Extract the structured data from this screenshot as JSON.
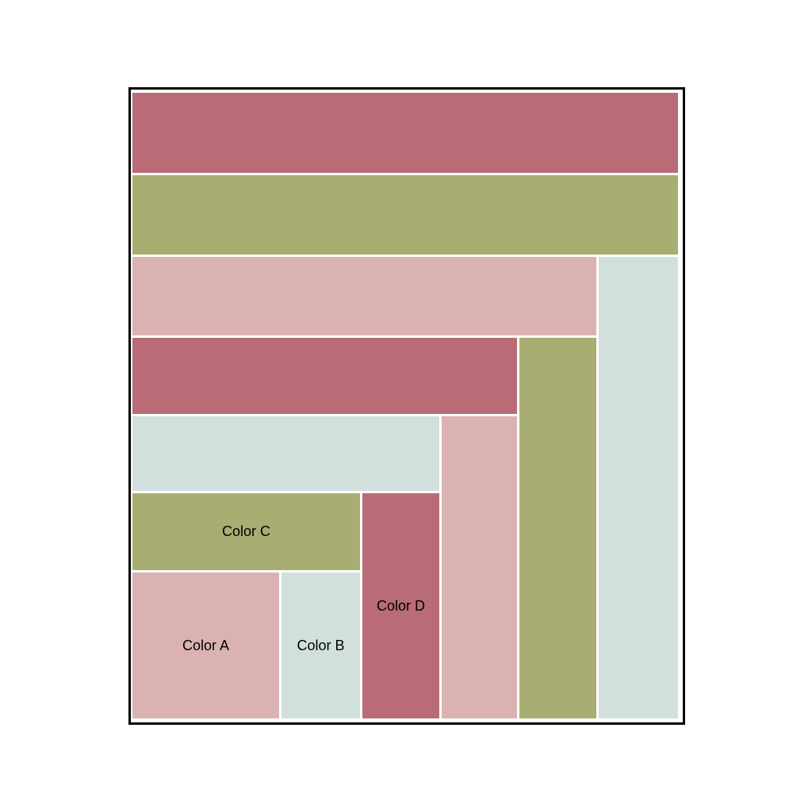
{
  "colors": {
    "A": "#dbb2b2",
    "B": "#d2e0dd",
    "C": "#a8ae71",
    "D": "#b96c75"
  },
  "legend": {
    "color_a": "Color A",
    "color_b": "Color B",
    "color_c": "Color C",
    "color_d": "Color D"
  },
  "patches": [
    {
      "id": "center-a",
      "color": "A",
      "label_key": "color_a"
    },
    {
      "id": "round1-b",
      "color": "B",
      "label_key": "color_b"
    },
    {
      "id": "round1-c",
      "color": "C",
      "label_key": "color_c"
    },
    {
      "id": "round1-d",
      "color": "D",
      "label_key": "color_d"
    },
    {
      "id": "round2-b",
      "color": "B"
    },
    {
      "id": "round2-a",
      "color": "A"
    },
    {
      "id": "round2-d",
      "color": "D"
    },
    {
      "id": "round3-c",
      "color": "C"
    },
    {
      "id": "round3-a",
      "color": "A"
    },
    {
      "id": "round3-b",
      "color": "B"
    },
    {
      "id": "round4-c",
      "color": "C"
    },
    {
      "id": "round4-d",
      "color": "D"
    }
  ]
}
